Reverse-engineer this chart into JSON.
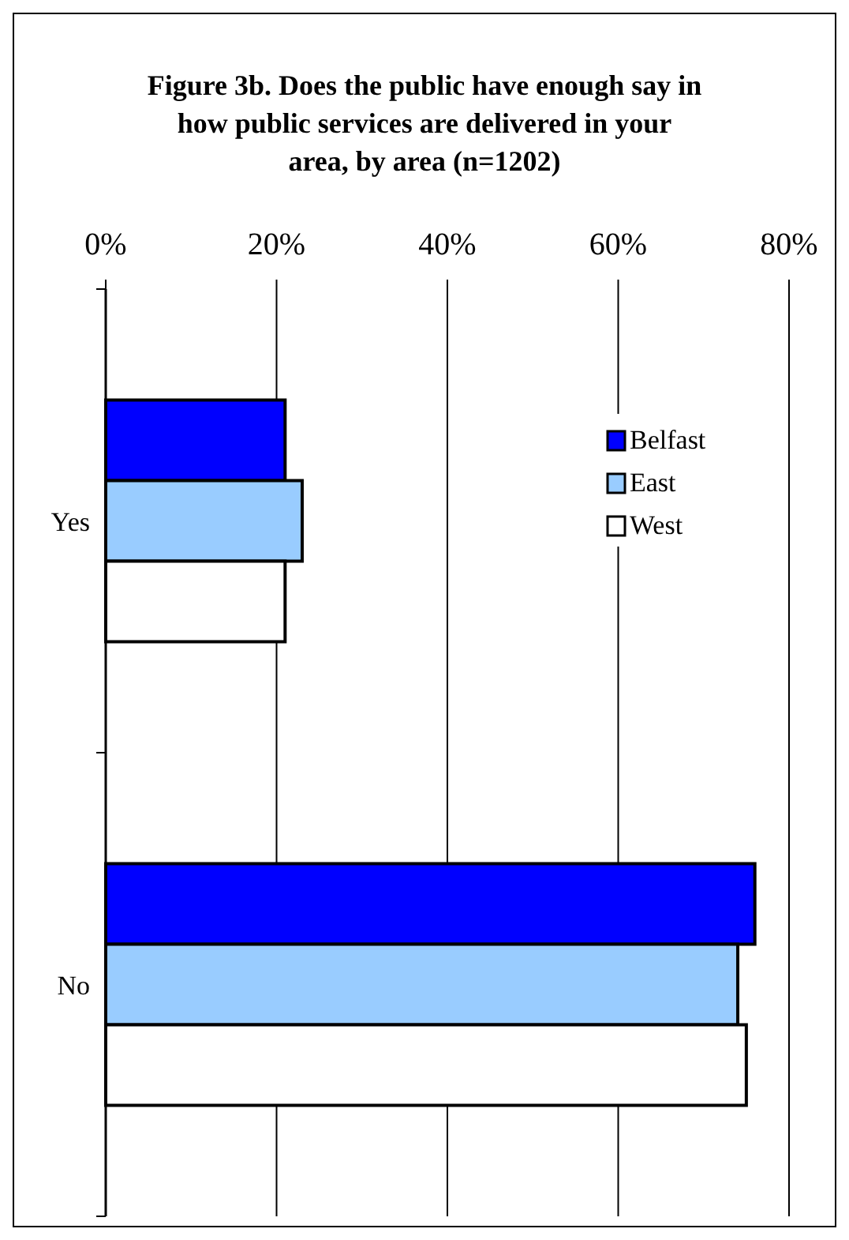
{
  "chart_data": {
    "type": "bar",
    "orientation": "horizontal",
    "title": "Figure 3b.  Does the public have enough say in how public services are delivered in your area, by area (n=1202)",
    "categories": [
      "Yes",
      "No"
    ],
    "series": [
      {
        "name": "Belfast",
        "color": "#0000ff",
        "values": [
          21,
          76
        ]
      },
      {
        "name": "East",
        "color": "#99ccff",
        "values": [
          23,
          74
        ]
      },
      {
        "name": "West",
        "color": "#ffffff",
        "values": [
          21,
          75
        ]
      }
    ],
    "xlim": [
      0,
      80
    ],
    "xticks": [
      {
        "value": 0,
        "label": "0%"
      },
      {
        "value": 20,
        "label": "20%"
      },
      {
        "value": 40,
        "label": "40%"
      },
      {
        "value": 60,
        "label": "60%"
      },
      {
        "value": 80,
        "label": "80%"
      }
    ],
    "grid": "x",
    "legend": "top right"
  }
}
